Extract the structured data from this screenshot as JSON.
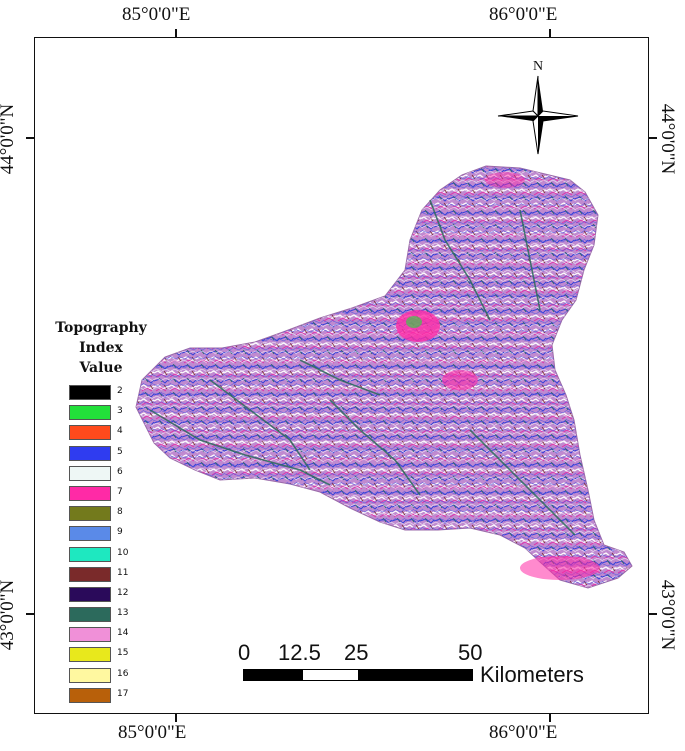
{
  "coords": {
    "top_left": "85°0'0\"E",
    "top_right": "86°0'0\"E",
    "bottom_left": "85°0'0\"E",
    "bottom_right": "86°0'0\"E",
    "left_upper": "44°0'0\"N",
    "left_lower": "43°0'0\"N",
    "right_upper": "44°0'0\"N",
    "right_lower": "43°0'0\"N"
  },
  "north_label": "N",
  "legend": {
    "title_line1": "Topography",
    "title_line2": "Index",
    "title_line3": "Value",
    "items": [
      {
        "label": "2",
        "color": "#000000"
      },
      {
        "label": "3",
        "color": "#22e03a"
      },
      {
        "label": "4",
        "color": "#ff4a1c"
      },
      {
        "label": "5",
        "color": "#2f3cf0"
      },
      {
        "label": "6",
        "color": "#eef7f5"
      },
      {
        "label": "7",
        "color": "#ff2aa6"
      },
      {
        "label": "8",
        "color": "#737a1c"
      },
      {
        "label": "9",
        "color": "#5a8ae8"
      },
      {
        "label": "10",
        "color": "#1ee8c0"
      },
      {
        "label": "11",
        "color": "#7a2a2a"
      },
      {
        "label": "12",
        "color": "#2a0a5a"
      },
      {
        "label": "13",
        "color": "#2c6a5c"
      },
      {
        "label": "14",
        "color": "#f090d8"
      },
      {
        "label": "15",
        "color": "#e8e81c"
      },
      {
        "label": "16",
        "color": "#fff8a0"
      },
      {
        "label": "17",
        "color": "#b8600a"
      }
    ]
  },
  "scale": {
    "labels": [
      "0",
      "12.5",
      "25",
      "50"
    ],
    "unit": "Kilometers"
  }
}
